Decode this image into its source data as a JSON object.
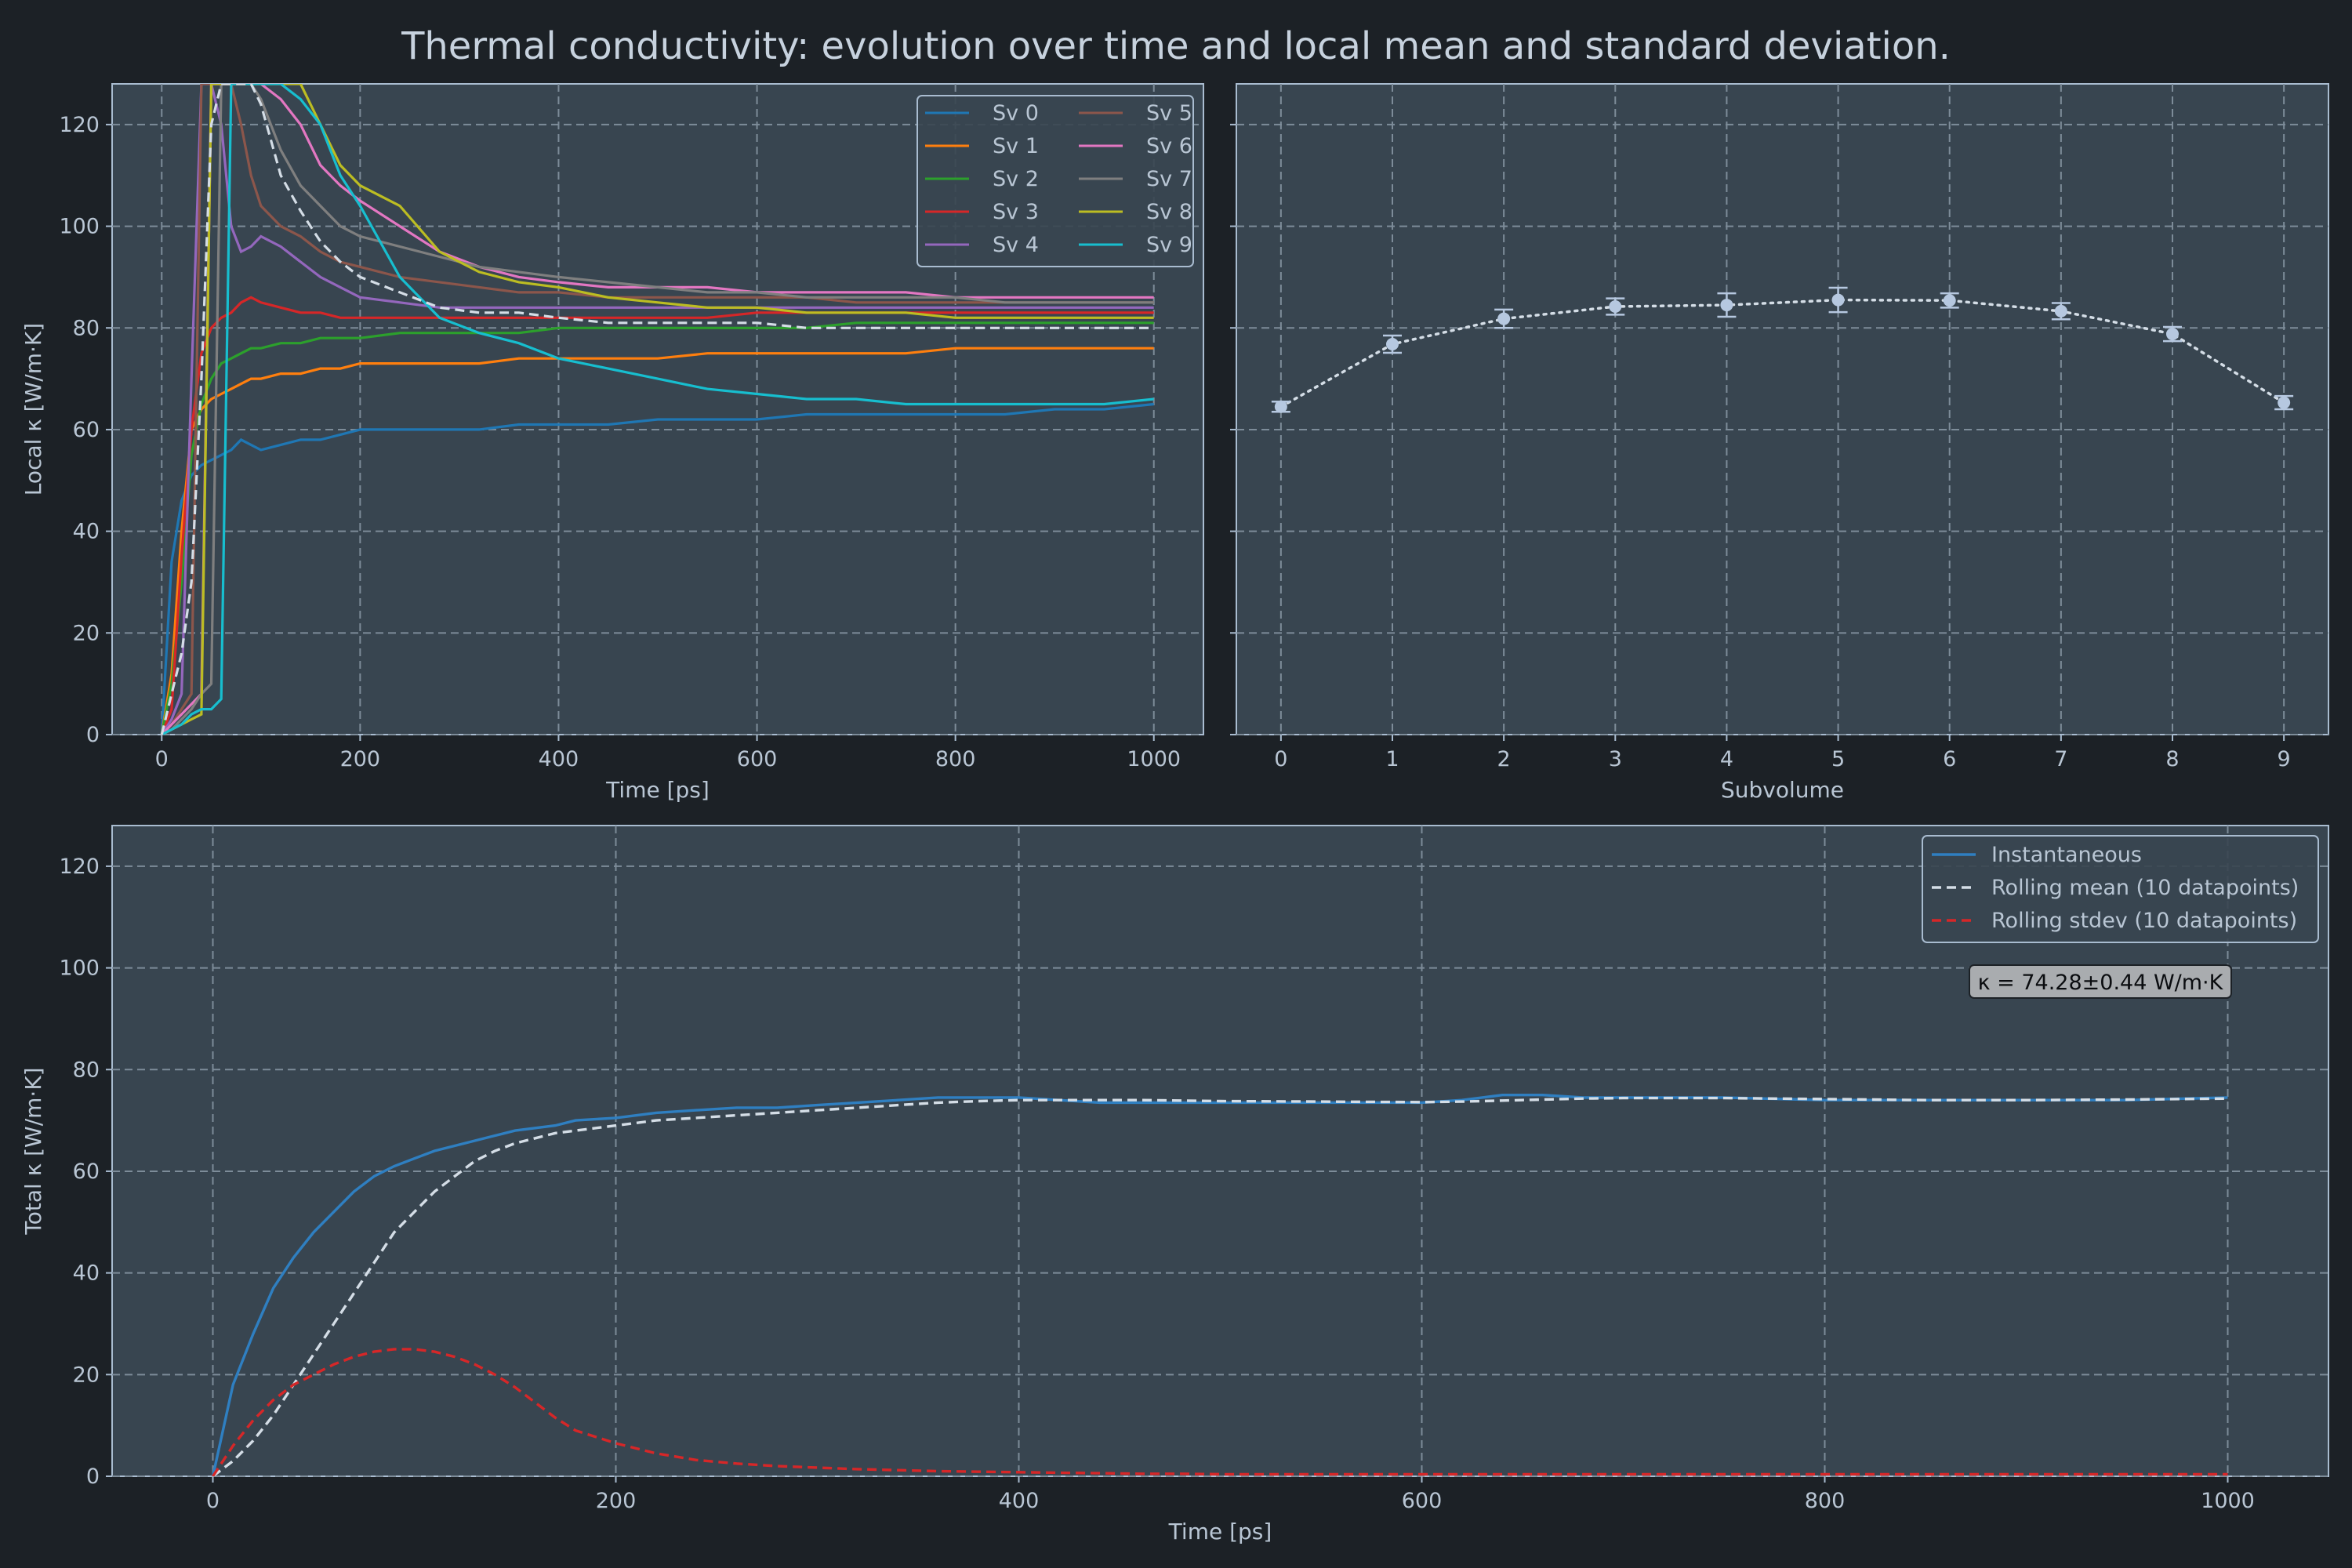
{
  "figure_title": "Thermal conductivity: evolution over time and local mean and standard deviation.",
  "chart_data": [
    {
      "type": "line",
      "xlabel": "Time [ps]",
      "ylabel": "Local κ [W/m·K]",
      "xlim": [
        -50,
        1050
      ],
      "ylim": [
        0,
        128
      ],
      "xticks": [
        0,
        200,
        400,
        600,
        800,
        1000
      ],
      "yticks": [
        0,
        20,
        40,
        60,
        80,
        100,
        120
      ],
      "grid": true,
      "legend": "top-right",
      "legend_columns": 2,
      "x": [
        0,
        10,
        20,
        30,
        40,
        50,
        60,
        70,
        80,
        90,
        100,
        120,
        140,
        160,
        180,
        200,
        240,
        280,
        320,
        360,
        400,
        450,
        500,
        550,
        600,
        650,
        700,
        750,
        800,
        850,
        900,
        950,
        1000
      ],
      "series": [
        {
          "name": "Sv 0",
          "color": "#1f77b4",
          "values": [
            0,
            34,
            46,
            51,
            53,
            54,
            55,
            56,
            58,
            57,
            56,
            57,
            58,
            58,
            59,
            60,
            60,
            60,
            60,
            61,
            61,
            61,
            62,
            62,
            62,
            63,
            63,
            63,
            63,
            63,
            64,
            64,
            65
          ]
        },
        {
          "name": "Sv 1",
          "color": "#ff7f0e",
          "values": [
            0,
            12,
            40,
            60,
            64,
            66,
            67,
            68,
            69,
            70,
            70,
            71,
            71,
            72,
            72,
            73,
            73,
            73,
            73,
            74,
            74,
            74,
            74,
            75,
            75,
            75,
            75,
            75,
            76,
            76,
            76,
            76,
            76
          ]
        },
        {
          "name": "Sv 2",
          "color": "#2ca02c",
          "values": [
            0,
            10,
            30,
            55,
            65,
            70,
            73,
            74,
            75,
            76,
            76,
            77,
            77,
            78,
            78,
            78,
            79,
            79,
            79,
            79,
            80,
            80,
            80,
            80,
            80,
            80,
            81,
            81,
            81,
            81,
            81,
            81,
            81
          ]
        },
        {
          "name": "Sv 3",
          "color": "#d62728",
          "values": [
            0,
            5,
            35,
            60,
            75,
            80,
            82,
            83,
            85,
            86,
            85,
            84,
            83,
            83,
            82,
            82,
            82,
            82,
            82,
            82,
            82,
            82,
            82,
            82,
            83,
            83,
            83,
            83,
            83,
            83,
            83,
            83,
            83
          ]
        },
        {
          "name": "Sv 4",
          "color": "#9467bd",
          "values": [
            0,
            3,
            8,
            70,
            128,
            128,
            120,
            100,
            95,
            96,
            98,
            96,
            93,
            90,
            88,
            86,
            85,
            84,
            84,
            84,
            84,
            84,
            84,
            84,
            84,
            84,
            84,
            84,
            84,
            84,
            84,
            84,
            84
          ]
        },
        {
          "name": "Sv 5",
          "color": "#8c564b",
          "values": [
            0,
            2,
            5,
            8,
            128,
            128,
            128,
            128,
            120,
            110,
            104,
            100,
            98,
            95,
            93,
            92,
            90,
            89,
            88,
            87,
            87,
            86,
            86,
            86,
            86,
            86,
            85,
            85,
            85,
            85,
            85,
            85,
            85
          ]
        },
        {
          "name": "Sv 6",
          "color": "#e377c2",
          "values": [
            0,
            2,
            4,
            6,
            8,
            128,
            128,
            128,
            128,
            128,
            128,
            125,
            120,
            112,
            108,
            105,
            100,
            95,
            92,
            90,
            89,
            88,
            88,
            88,
            87,
            87,
            87,
            87,
            86,
            86,
            86,
            86,
            86
          ]
        },
        {
          "name": "Sv 7",
          "color": "#7f7f7f",
          "values": [
            0,
            1,
            3,
            5,
            8,
            10,
            128,
            128,
            128,
            128,
            125,
            115,
            108,
            104,
            100,
            98,
            96,
            94,
            92,
            91,
            90,
            89,
            88,
            87,
            87,
            86,
            86,
            86,
            86,
            85,
            85,
            85,
            85
          ]
        },
        {
          "name": "Sv 8",
          "color": "#bcbd22",
          "values": [
            0,
            1,
            2,
            3,
            4,
            128,
            128,
            128,
            128,
            128,
            128,
            128,
            128,
            120,
            112,
            108,
            104,
            95,
            91,
            89,
            88,
            86,
            85,
            84,
            84,
            83,
            83,
            83,
            82,
            82,
            82,
            82,
            82
          ]
        },
        {
          "name": "Sv 9",
          "color": "#17becf",
          "values": [
            0,
            1,
            2,
            4,
            5,
            5,
            7,
            128,
            128,
            128,
            128,
            128,
            125,
            120,
            110,
            104,
            90,
            82,
            79,
            77,
            74,
            72,
            70,
            68,
            67,
            66,
            66,
            65,
            65,
            65,
            65,
            65,
            66
          ]
        },
        {
          "name": "",
          "color": "#d4dde6",
          "dashed": true,
          "values": [
            0,
            8,
            16,
            30,
            70,
            120,
            128,
            128,
            128,
            128,
            124,
            110,
            103,
            97,
            93,
            90,
            87,
            84,
            83,
            83,
            82,
            81,
            81,
            81,
            81,
            80,
            80,
            80,
            80,
            80,
            80,
            80,
            80
          ]
        }
      ]
    },
    {
      "type": "scatter",
      "xlabel": "Subvolume",
      "ylabel": "",
      "xlim": [
        -0.4,
        9.4
      ],
      "ylim": [
        0,
        128
      ],
      "xticks": [
        0,
        1,
        2,
        3,
        4,
        5,
        6,
        7,
        8,
        9
      ],
      "grid": true,
      "categories": [
        0,
        1,
        2,
        3,
        4,
        5,
        6,
        7,
        8,
        9
      ],
      "values": [
        64.5,
        76.8,
        81.8,
        84.2,
        84.5,
        85.5,
        85.4,
        83.3,
        78.8,
        65.3
      ],
      "errors": [
        1.0,
        1.7,
        1.8,
        1.6,
        2.3,
        2.4,
        1.4,
        1.6,
        1.4,
        1.3
      ],
      "color": "#b6c8e0",
      "connector": "dotted"
    },
    {
      "type": "line",
      "xlabel": "Time [ps]",
      "ylabel": "Total κ [W/m·K]",
      "xlim": [
        -50,
        1050
      ],
      "ylim": [
        0,
        128
      ],
      "xticks": [
        0,
        200,
        400,
        600,
        800,
        1000
      ],
      "yticks": [
        0,
        20,
        40,
        60,
        80,
        100,
        120
      ],
      "grid": true,
      "legend": "top-right",
      "annotation": "κ = 74.28±0.44 W/m·K",
      "x": [
        0,
        10,
        20,
        30,
        40,
        50,
        60,
        70,
        80,
        90,
        100,
        110,
        120,
        130,
        140,
        150,
        160,
        170,
        180,
        200,
        220,
        240,
        260,
        280,
        300,
        320,
        340,
        360,
        380,
        400,
        420,
        440,
        460,
        480,
        500,
        550,
        600,
        620,
        640,
        660,
        680,
        700,
        750,
        800,
        850,
        900,
        950,
        1000
      ],
      "series": [
        {
          "name": "Instantaneous",
          "color": "#2f7fc1",
          "values": [
            0,
            18,
            28,
            37,
            43,
            48,
            52,
            56,
            59,
            61,
            62.5,
            64,
            65,
            66,
            67,
            68,
            68.5,
            69,
            70,
            70.5,
            71.5,
            72,
            72.5,
            72.5,
            73,
            73.5,
            74,
            74.5,
            74.5,
            74.5,
            74,
            73.5,
            73.5,
            73.5,
            73.5,
            73.5,
            73.5,
            74,
            75,
            75,
            74.5,
            74.5,
            74.5,
            74,
            74,
            74,
            74,
            74.5
          ]
        },
        {
          "name": "Rolling mean (10 datapoints)",
          "color": "#d4dde6",
          "dashed": true,
          "values": [
            0,
            3,
            7,
            12,
            18,
            24,
            30,
            36,
            42,
            48,
            52,
            56,
            59,
            62,
            64,
            65.5,
            66.5,
            67.5,
            68,
            69,
            70,
            70.5,
            71,
            71.5,
            72,
            72.5,
            73,
            73.5,
            73.8,
            74,
            74,
            74,
            74,
            73.9,
            73.8,
            73.7,
            73.6,
            73.7,
            73.9,
            74.1,
            74.3,
            74.4,
            74.4,
            74.2,
            74,
            74,
            74.1,
            74.3
          ]
        },
        {
          "name": "Rolling stdev (10 datapoints)",
          "color": "#d62728",
          "dashed": true,
          "values": [
            0,
            6,
            11,
            15,
            18,
            20,
            22,
            23.5,
            24.5,
            25,
            25,
            24.5,
            23.5,
            22,
            20,
            17.5,
            14.5,
            11.5,
            9,
            6.5,
            4.5,
            3.2,
            2.5,
            2,
            1.7,
            1.4,
            1.2,
            1,
            0.9,
            0.8,
            0.7,
            0.6,
            0.5,
            0.5,
            0.4,
            0.4,
            0.4,
            0.4,
            0.4,
            0.4,
            0.4,
            0.4,
            0.4,
            0.4,
            0.4,
            0.4,
            0.4,
            0.4
          ]
        }
      ]
    }
  ]
}
